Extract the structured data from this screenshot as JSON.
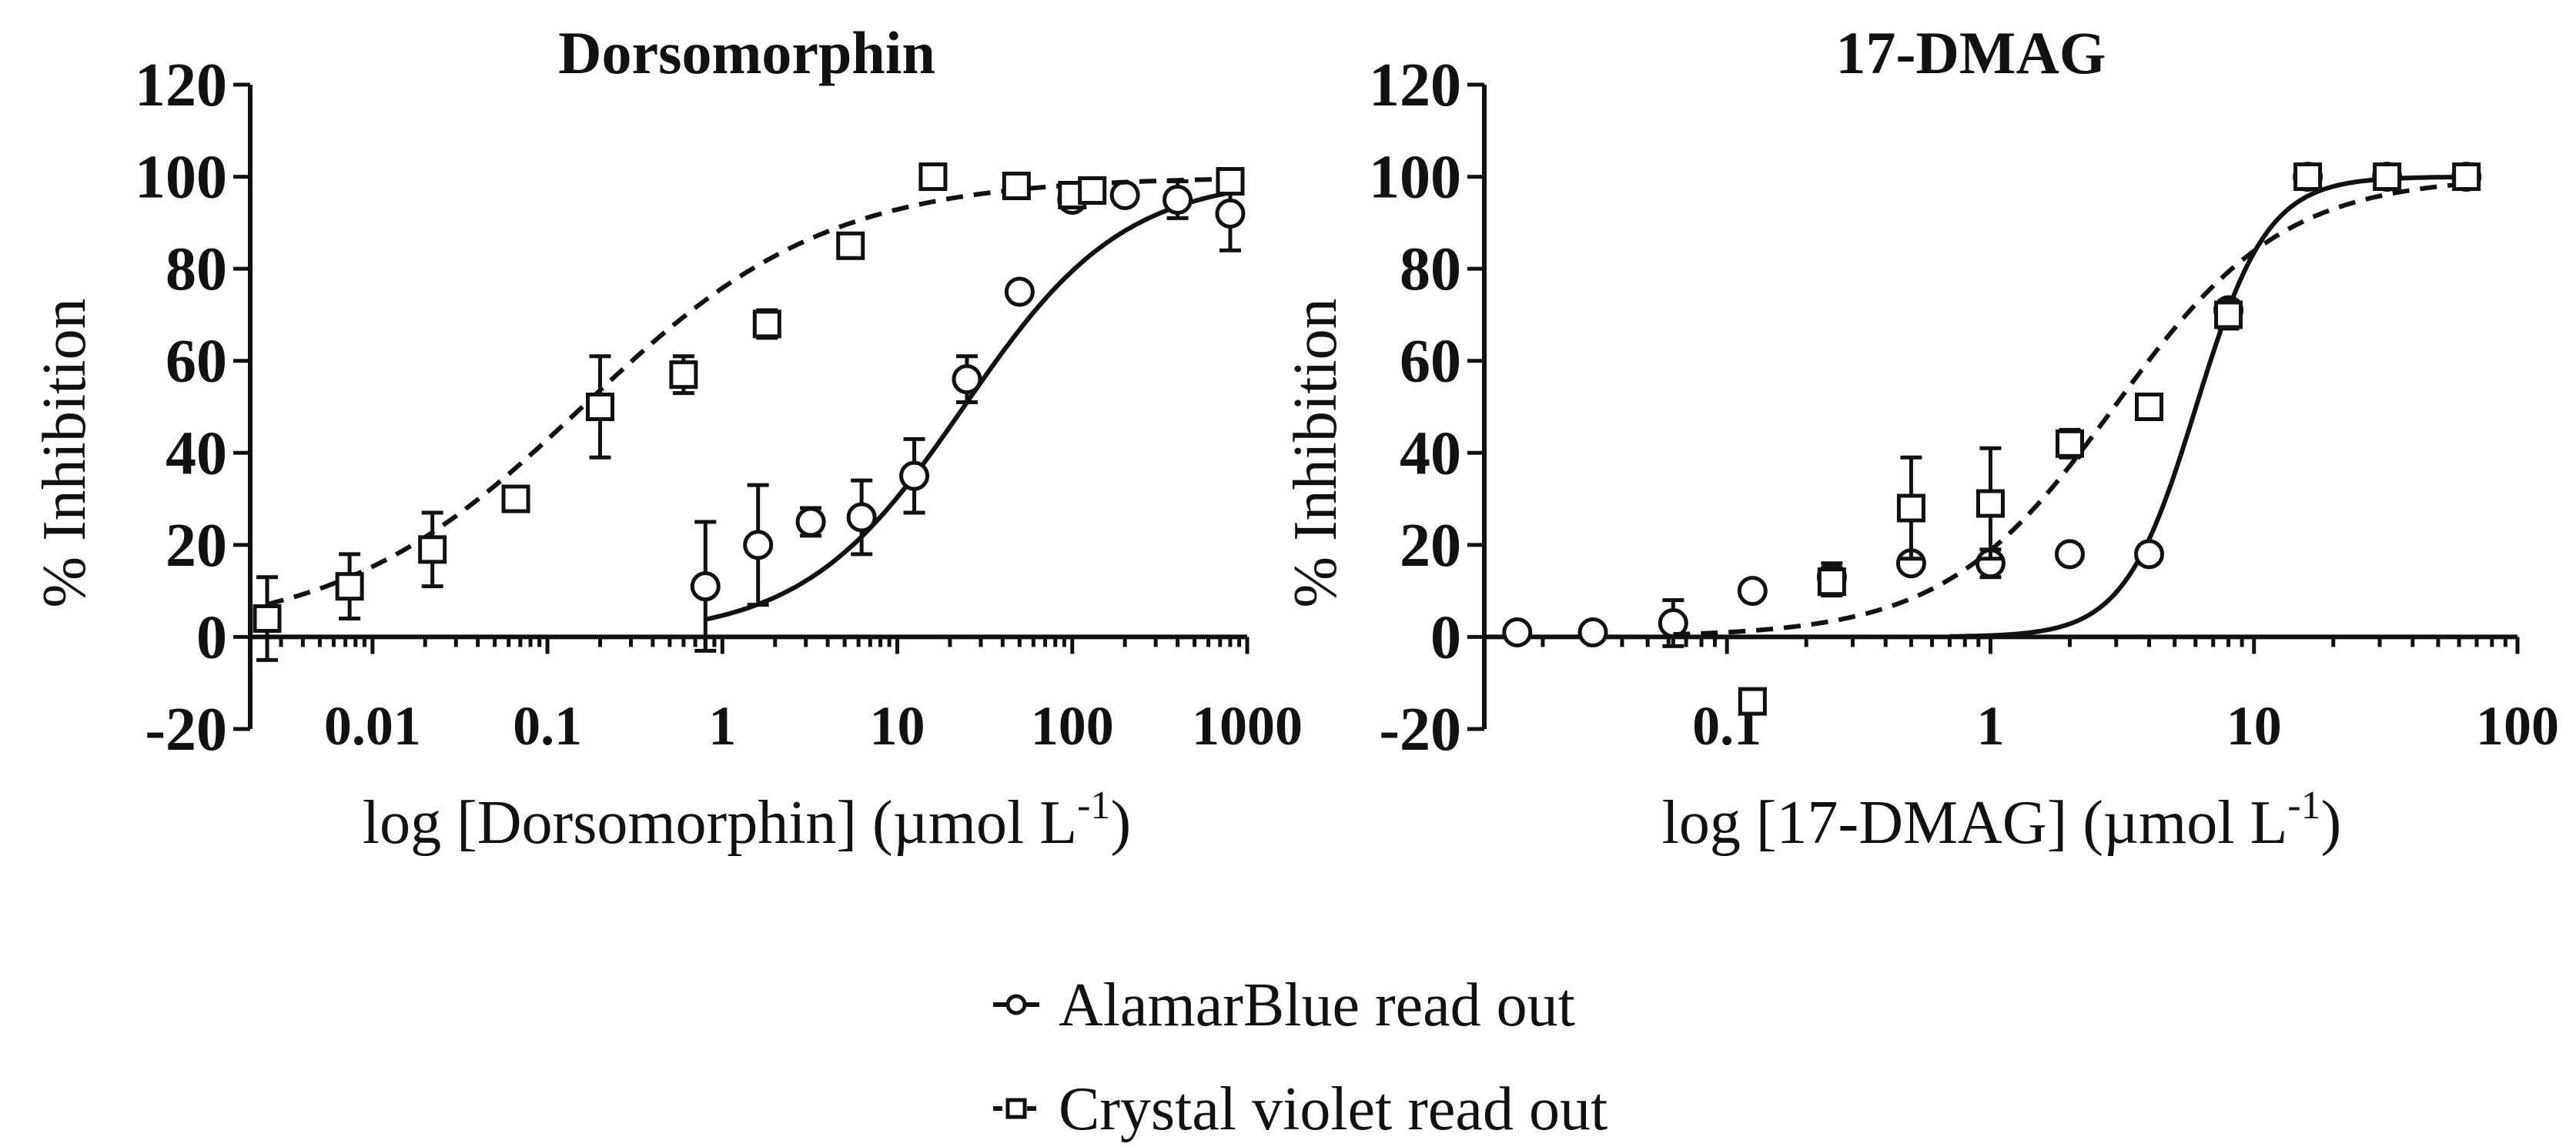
{
  "chart_data": [
    {
      "type": "scatter",
      "title": "Dorsomorphin",
      "xlabel": "log [Dorsomorphin] (µmol L",
      "xlabel_sup": "-1",
      "xlabel_suffix": ")",
      "ylabel": "% Inhibition",
      "x_scale": "log",
      "xlim": [
        0.002,
        1000
      ],
      "ylim": [
        -20,
        120
      ],
      "yticks": [
        -20,
        0,
        20,
        40,
        60,
        80,
        100,
        120
      ],
      "ytick_labels": [
        "-20",
        "0",
        "20",
        "40",
        "60",
        "80",
        "100",
        "120"
      ],
      "xticks": [
        0.01,
        0.1,
        1,
        10,
        100,
        1000
      ],
      "xtick_labels": [
        "0.01",
        "0.1",
        "1",
        "10",
        "100",
        "1000"
      ],
      "series": [
        {
          "name": "AlamarBlue read out",
          "marker": "circle",
          "line": "solid",
          "fit": {
            "bottom": 0,
            "top": 100,
            "log_ic50": 1.38,
            "hill": 0.95,
            "x_range": [
              0.8,
              800
            ]
          },
          "points": [
            {
              "x": 0.8,
              "y": 11,
              "err": 14
            },
            {
              "x": 1.6,
              "y": 20,
              "err": 13
            },
            {
              "x": 3.2,
              "y": 25,
              "err": 3
            },
            {
              "x": 6.25,
              "y": 26,
              "err": 8
            },
            {
              "x": 12.5,
              "y": 35,
              "err": 8
            },
            {
              "x": 25,
              "y": 56,
              "err": 5
            },
            {
              "x": 50,
              "y": 75,
              "err": 2
            },
            {
              "x": 100,
              "y": 95,
              "err": 2
            },
            {
              "x": 200,
              "y": 96,
              "err": 2
            },
            {
              "x": 400,
              "y": 95,
              "err": 4
            },
            {
              "x": 800,
              "y": 92,
              "err": 8
            }
          ]
        },
        {
          "name": "Crystal violet read out",
          "marker": "square",
          "line": "dashed",
          "fit": {
            "bottom": 0,
            "top": 100,
            "log_ic50": -0.8,
            "hill": 0.62,
            "x_range": [
              0.0025,
              800
            ]
          },
          "points": [
            {
              "x": 0.0025,
              "y": 4,
              "err": 9
            },
            {
              "x": 0.0074,
              "y": 11,
              "err": 7
            },
            {
              "x": 0.022,
              "y": 19,
              "err": 8
            },
            {
              "x": 0.066,
              "y": 30,
              "err": 2
            },
            {
              "x": 0.2,
              "y": 50,
              "err": 11
            },
            {
              "x": 0.6,
              "y": 57,
              "err": 4
            },
            {
              "x": 1.8,
              "y": 68,
              "err": 3
            },
            {
              "x": 5.4,
              "y": 85,
              "err": 2
            },
            {
              "x": 16,
              "y": 100,
              "err": 0
            },
            {
              "x": 48,
              "y": 98,
              "err": 0
            },
            {
              "x": 100,
              "y": 96,
              "err": 1
            },
            {
              "x": 130,
              "y": 97,
              "err": 1
            },
            {
              "x": 800,
              "y": 99,
              "err": 1
            }
          ]
        }
      ]
    },
    {
      "type": "scatter",
      "title": "17-DMAG",
      "xlabel": "log [17-DMAG] (µmol L",
      "xlabel_sup": "-1",
      "xlabel_suffix": ")",
      "ylabel": "% Inhibition",
      "x_scale": "log",
      "xlim": [
        0.012,
        100
      ],
      "ylim": [
        -20,
        120
      ],
      "yticks": [
        -20,
        0,
        20,
        40,
        60,
        80,
        100,
        120
      ],
      "ytick_labels": [
        "-20",
        "0",
        "20",
        "40",
        "60",
        "80",
        "100",
        "120"
      ],
      "xticks": [
        0.1,
        1,
        10,
        100
      ],
      "xtick_labels": [
        "0.1",
        "1",
        "10",
        "100"
      ],
      "series": [
        {
          "name": "AlamarBlue read out",
          "marker": "circle",
          "line": "solid",
          "fit": {
            "bottom": 0,
            "top": 100,
            "log_ic50": 0.78,
            "hill": 3.2,
            "x_range": [
              0.7,
              64
            ]
          },
          "points": [
            {
              "x": 0.016,
              "y": 1,
              "err": 0
            },
            {
              "x": 0.031,
              "y": 1,
              "err": 0
            },
            {
              "x": 0.0625,
              "y": 3,
              "err": 5
            },
            {
              "x": 0.125,
              "y": 10,
              "err": 0
            },
            {
              "x": 0.25,
              "y": 13,
              "err": 3
            },
            {
              "x": 0.5,
              "y": 16,
              "err": 0
            },
            {
              "x": 1,
              "y": 16,
              "err": 3
            },
            {
              "x": 2,
              "y": 18,
              "err": 2
            },
            {
              "x": 4,
              "y": 18,
              "err": 2
            },
            {
              "x": 8,
              "y": 71,
              "err": 2
            },
            {
              "x": 16,
              "y": 100,
              "err": 1
            },
            {
              "x": 32,
              "y": 100,
              "err": 0
            },
            {
              "x": 64,
              "y": 100,
              "err": 0
            }
          ]
        },
        {
          "name": "Crystal violet read out",
          "marker": "square",
          "line": "dashed",
          "fit": {
            "bottom": 0,
            "top": 100,
            "log_ic50": 0.47,
            "hill": 1.35,
            "x_range": [
              0.0625,
              64
            ]
          },
          "points": [
            {
              "x": 0.125,
              "y": -14,
              "err": 0
            },
            {
              "x": 0.25,
              "y": 12,
              "err": 3
            },
            {
              "x": 0.5,
              "y": 28,
              "err": 11
            },
            {
              "x": 1,
              "y": 29,
              "err": 12
            },
            {
              "x": 2,
              "y": 42,
              "err": 3
            },
            {
              "x": 4,
              "y": 50,
              "err": 0
            },
            {
              "x": 8,
              "y": 70,
              "err": 3
            },
            {
              "x": 16,
              "y": 100,
              "err": 0
            },
            {
              "x": 32,
              "y": 100,
              "err": 0
            },
            {
              "x": 64,
              "y": 100,
              "err": 0
            }
          ]
        }
      ]
    }
  ],
  "legend": {
    "items": [
      {
        "label": "AlamarBlue read out",
        "marker": "circle",
        "line": "solid"
      },
      {
        "label": "Crystal violet read out",
        "marker": "square",
        "line": "dashed"
      }
    ]
  }
}
